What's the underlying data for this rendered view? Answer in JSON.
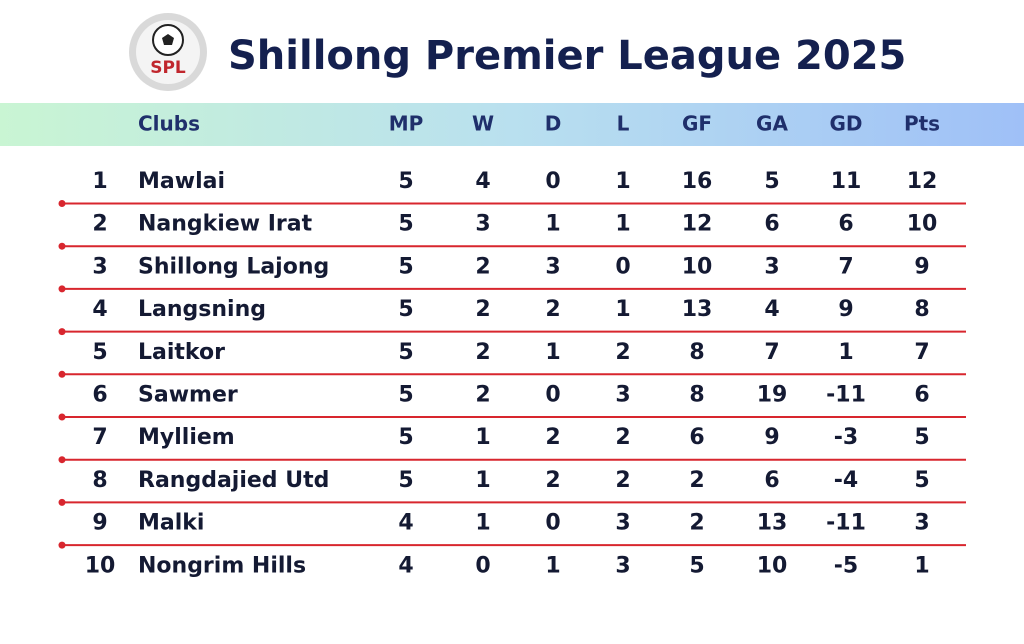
{
  "logo": {
    "text": "SPL"
  },
  "header": {
    "title": "Shillong Premier League 2025"
  },
  "table": {
    "columns": [
      "Clubs",
      "MP",
      "W",
      "D",
      "L",
      "GF",
      "GA",
      "GD",
      "Pts"
    ],
    "rows": [
      [
        1,
        "Mawlai",
        5,
        4,
        0,
        1,
        16,
        5,
        11,
        12
      ],
      [
        2,
        "Nangkiew Irat",
        5,
        3,
        1,
        1,
        12,
        6,
        6,
        10
      ],
      [
        3,
        "Shillong Lajong",
        5,
        2,
        3,
        0,
        10,
        3,
        7,
        9
      ],
      [
        4,
        "Langsning",
        5,
        2,
        2,
        1,
        13,
        4,
        9,
        8
      ],
      [
        5,
        "Laitkor",
        5,
        2,
        1,
        2,
        8,
        7,
        1,
        7
      ],
      [
        6,
        "Sawmer",
        5,
        2,
        0,
        3,
        8,
        19,
        -11,
        6
      ],
      [
        7,
        "Mylliem",
        5,
        1,
        2,
        2,
        6,
        9,
        -3,
        5
      ],
      [
        8,
        "Rangdajied Utd",
        5,
        1,
        2,
        2,
        2,
        6,
        -4,
        5
      ],
      [
        9,
        "Malki",
        4,
        1,
        0,
        3,
        2,
        13,
        -11,
        3
      ],
      [
        10,
        "Nongrim Hills",
        4,
        0,
        1,
        3,
        5,
        10,
        -5,
        1
      ]
    ]
  }
}
